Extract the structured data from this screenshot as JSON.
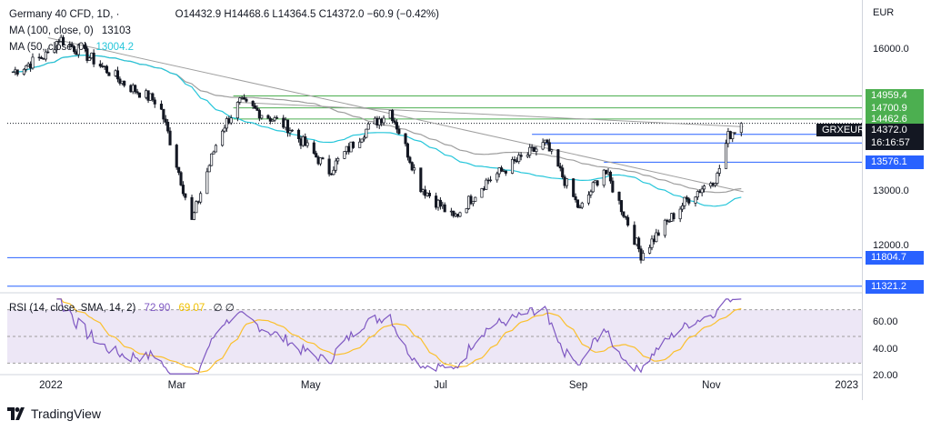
{
  "header": {
    "symbol": "Germany 40 CFD, 1D, ·",
    "ohlc": "O14432.9  H14468.6  L14364.5  C14372.0  −60.9 (−0.42%)",
    "ma100_label": "MA (100, close, 0)",
    "ma100_value": "13103",
    "ma50_label": "MA (50, close, 0)",
    "ma50_value": "13004.2",
    "rsi_label": "RSI (14, close, SMA, 14, 2)",
    "rsi_value": "72.90",
    "rsi_sma_value": "69.07",
    "rsi_extra": "∅  ∅"
  },
  "currency": "EUR",
  "symbol_tag": "GRXEUR",
  "last_price": "14372.0",
  "countdown": "16:16:57",
  "branding": "TradingView",
  "colors": {
    "up": "#131722",
    "ma100": "#9e9e9e",
    "ma50": "#26c6da",
    "rsi": "#7e57c2",
    "rsi_sma": "#fbc02d",
    "green_level": "#4caf50",
    "blue_level": "#2962ff"
  },
  "chart_data": [
    {
      "type": "candlestick",
      "title": "Germany 40 CFD, 1D",
      "ylabel": "EUR",
      "yscale": "log",
      "ylim": [
        11150,
        16700
      ],
      "x_ticks": [
        "2022",
        "Mar",
        "May",
        "Jul",
        "Sep",
        "Nov",
        "2023"
      ],
      "y_ticks": [
        12000.0,
        13000.0,
        16000.0
      ],
      "horizontal_levels": [
        {
          "value": 14959.4,
          "color": "green"
        },
        {
          "value": 14700.9,
          "color": "green"
        },
        {
          "value": 14462.6,
          "color": "green"
        },
        {
          "value": 14140.0,
          "color": "blue"
        },
        {
          "value": 13963.8,
          "color": "blue"
        },
        {
          "value": 13576.1,
          "color": "blue"
        },
        {
          "value": 11804.7,
          "color": "blue"
        },
        {
          "value": 11321.2,
          "color": "blue"
        }
      ],
      "trendlines": [
        {
          "from": [
            "2021-12-31",
            16290
          ],
          "to": [
            "2022-11-15",
            13000
          ]
        },
        {
          "from": [
            "2022-03-28",
            14820
          ],
          "to": [
            "2022-11-15",
            14300
          ]
        }
      ],
      "price_path": [
        [
          "2021-12-15",
          15500
        ],
        [
          "2021-12-31",
          15900
        ],
        [
          "2022-01-05",
          16280
        ],
        [
          "2022-01-20",
          15800
        ],
        [
          "2022-02-05",
          15200
        ],
        [
          "2022-02-20",
          14800
        ],
        [
          "2022-03-07",
          12440
        ],
        [
          "2022-03-20",
          14200
        ],
        [
          "2022-03-29",
          14820
        ],
        [
          "2022-04-20",
          14300
        ],
        [
          "2022-05-09",
          13400
        ],
        [
          "2022-05-25",
          14200
        ],
        [
          "2022-06-06",
          14650
        ],
        [
          "2022-06-20",
          13100
        ],
        [
          "2022-07-05",
          12500
        ],
        [
          "2022-07-20",
          13200
        ],
        [
          "2022-08-16",
          13950
        ],
        [
          "2022-09-01",
          12650
        ],
        [
          "2022-09-12",
          13450
        ],
        [
          "2022-09-29",
          11860
        ],
        [
          "2022-10-20",
          12850
        ],
        [
          "2022-11-03",
          13300
        ],
        [
          "2022-11-08",
          14100
        ],
        [
          "2022-11-14",
          14400
        ]
      ],
      "series": [
        {
          "name": "MA (100, close, 0)",
          "last": 13103
        },
        {
          "name": "MA (50, close, 0)",
          "last": 13004.2
        }
      ]
    },
    {
      "type": "line",
      "title": "RSI (14, close, SMA, 14, 2)",
      "ylim": [
        20,
        80
      ],
      "y_ticks": [
        20.0,
        40.0,
        60.0
      ],
      "bands": [
        30,
        70
      ],
      "series": [
        {
          "name": "RSI",
          "last": 72.9
        },
        {
          "name": "SMA",
          "last": 69.07
        }
      ]
    }
  ]
}
